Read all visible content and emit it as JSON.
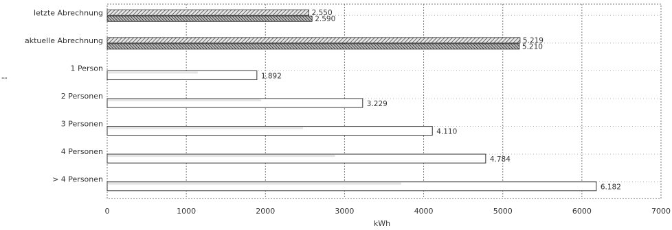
{
  "chart_data": {
    "type": "bar",
    "orientation": "horizontal",
    "categories": [
      "letzte Abrechnung",
      "aktuelle Abrechnung",
      "1 Person",
      "2 Personen",
      "3 Personen",
      "4 Personen",
      "> 4 Personen"
    ],
    "bar_groups": [
      [
        2550,
        2590
      ],
      [
        5219,
        5210
      ],
      [
        1892
      ],
      [
        3229
      ],
      [
        4110
      ],
      [
        4784
      ],
      [
        6182
      ]
    ],
    "value_labels": [
      [
        "2.550",
        "2.590"
      ],
      [
        "5.219",
        "5.210"
      ],
      [
        "1.892"
      ],
      [
        "3.229"
      ],
      [
        "4.110"
      ],
      [
        "4.784"
      ],
      [
        "6.182"
      ]
    ],
    "xlabel": "kWh",
    "xlim": [
      0,
      7000
    ],
    "xticks": [
      0,
      1000,
      2000,
      3000,
      4000,
      5000,
      6000,
      7000
    ],
    "xtick_labels": [
      "0",
      "1000",
      "2000",
      "3000",
      "4000",
      "5000",
      "6000",
      "7000"
    ],
    "grid": "vertical-dotted",
    "legend": "none",
    "colors": {
      "hatched_bar": "#555555",
      "outline_bar": "#333333",
      "grid": "#777777"
    }
  }
}
